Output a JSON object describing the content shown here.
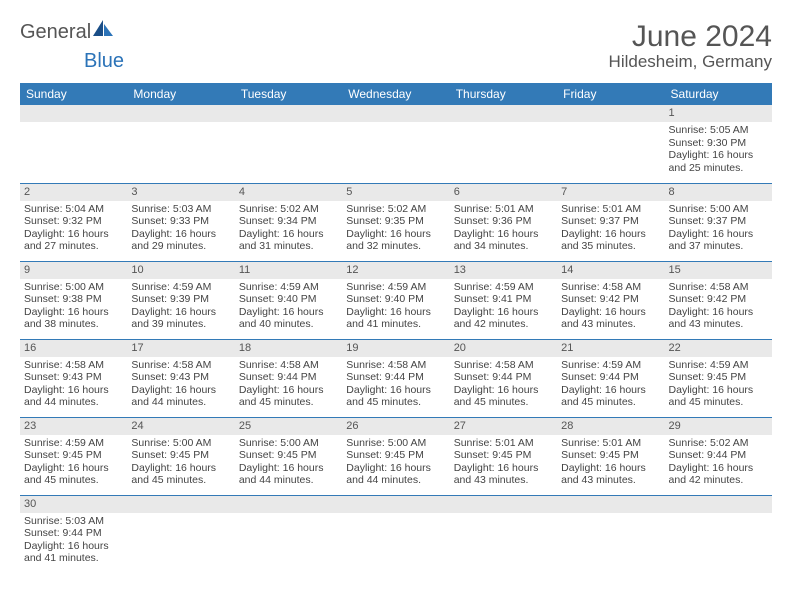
{
  "logo": {
    "general": "General",
    "blue": "Blue"
  },
  "title": "June 2024",
  "location": "Hildesheim, Germany",
  "dayHeaders": [
    "Sunday",
    "Monday",
    "Tuesday",
    "Wednesday",
    "Thursday",
    "Friday",
    "Saturday"
  ],
  "colors": {
    "headerBg": "#337ab7",
    "headerText": "#ffffff",
    "dayNumBg": "#e9e9e9",
    "borderColor": "#337ab7",
    "logoBlue": "#2b73b8"
  },
  "weeks": [
    [
      null,
      null,
      null,
      null,
      null,
      null,
      {
        "n": "1",
        "sr": "5:05 AM",
        "ss": "9:30 PM",
        "dl": "16 hours and 25 minutes."
      }
    ],
    [
      {
        "n": "2",
        "sr": "5:04 AM",
        "ss": "9:32 PM",
        "dl": "16 hours and 27 minutes."
      },
      {
        "n": "3",
        "sr": "5:03 AM",
        "ss": "9:33 PM",
        "dl": "16 hours and 29 minutes."
      },
      {
        "n": "4",
        "sr": "5:02 AM",
        "ss": "9:34 PM",
        "dl": "16 hours and 31 minutes."
      },
      {
        "n": "5",
        "sr": "5:02 AM",
        "ss": "9:35 PM",
        "dl": "16 hours and 32 minutes."
      },
      {
        "n": "6",
        "sr": "5:01 AM",
        "ss": "9:36 PM",
        "dl": "16 hours and 34 minutes."
      },
      {
        "n": "7",
        "sr": "5:01 AM",
        "ss": "9:37 PM",
        "dl": "16 hours and 35 minutes."
      },
      {
        "n": "8",
        "sr": "5:00 AM",
        "ss": "9:37 PM",
        "dl": "16 hours and 37 minutes."
      }
    ],
    [
      {
        "n": "9",
        "sr": "5:00 AM",
        "ss": "9:38 PM",
        "dl": "16 hours and 38 minutes."
      },
      {
        "n": "10",
        "sr": "4:59 AM",
        "ss": "9:39 PM",
        "dl": "16 hours and 39 minutes."
      },
      {
        "n": "11",
        "sr": "4:59 AM",
        "ss": "9:40 PM",
        "dl": "16 hours and 40 minutes."
      },
      {
        "n": "12",
        "sr": "4:59 AM",
        "ss": "9:40 PM",
        "dl": "16 hours and 41 minutes."
      },
      {
        "n": "13",
        "sr": "4:59 AM",
        "ss": "9:41 PM",
        "dl": "16 hours and 42 minutes."
      },
      {
        "n": "14",
        "sr": "4:58 AM",
        "ss": "9:42 PM",
        "dl": "16 hours and 43 minutes."
      },
      {
        "n": "15",
        "sr": "4:58 AM",
        "ss": "9:42 PM",
        "dl": "16 hours and 43 minutes."
      }
    ],
    [
      {
        "n": "16",
        "sr": "4:58 AM",
        "ss": "9:43 PM",
        "dl": "16 hours and 44 minutes."
      },
      {
        "n": "17",
        "sr": "4:58 AM",
        "ss": "9:43 PM",
        "dl": "16 hours and 44 minutes."
      },
      {
        "n": "18",
        "sr": "4:58 AM",
        "ss": "9:44 PM",
        "dl": "16 hours and 45 minutes."
      },
      {
        "n": "19",
        "sr": "4:58 AM",
        "ss": "9:44 PM",
        "dl": "16 hours and 45 minutes."
      },
      {
        "n": "20",
        "sr": "4:58 AM",
        "ss": "9:44 PM",
        "dl": "16 hours and 45 minutes."
      },
      {
        "n": "21",
        "sr": "4:59 AM",
        "ss": "9:44 PM",
        "dl": "16 hours and 45 minutes."
      },
      {
        "n": "22",
        "sr": "4:59 AM",
        "ss": "9:45 PM",
        "dl": "16 hours and 45 minutes."
      }
    ],
    [
      {
        "n": "23",
        "sr": "4:59 AM",
        "ss": "9:45 PM",
        "dl": "16 hours and 45 minutes."
      },
      {
        "n": "24",
        "sr": "5:00 AM",
        "ss": "9:45 PM",
        "dl": "16 hours and 45 minutes."
      },
      {
        "n": "25",
        "sr": "5:00 AM",
        "ss": "9:45 PM",
        "dl": "16 hours and 44 minutes."
      },
      {
        "n": "26",
        "sr": "5:00 AM",
        "ss": "9:45 PM",
        "dl": "16 hours and 44 minutes."
      },
      {
        "n": "27",
        "sr": "5:01 AM",
        "ss": "9:45 PM",
        "dl": "16 hours and 43 minutes."
      },
      {
        "n": "28",
        "sr": "5:01 AM",
        "ss": "9:45 PM",
        "dl": "16 hours and 43 minutes."
      },
      {
        "n": "29",
        "sr": "5:02 AM",
        "ss": "9:44 PM",
        "dl": "16 hours and 42 minutes."
      }
    ],
    [
      {
        "n": "30",
        "sr": "5:03 AM",
        "ss": "9:44 PM",
        "dl": "16 hours and 41 minutes."
      },
      null,
      null,
      null,
      null,
      null,
      null
    ]
  ],
  "labels": {
    "sunrise": "Sunrise: ",
    "sunset": "Sunset: ",
    "daylight": "Daylight: "
  }
}
